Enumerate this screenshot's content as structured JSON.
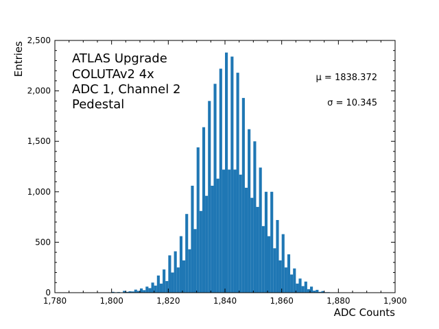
{
  "chart_data": {
    "type": "bar",
    "title": "",
    "xlabel": "ADC Counts",
    "ylabel": "Entries",
    "xlim": [
      1780,
      1900
    ],
    "ylim": [
      0,
      2500
    ],
    "bin_width": 1,
    "x_ticks": [
      1780,
      1800,
      1820,
      1840,
      1860,
      1880,
      1900
    ],
    "x_tick_labels": [
      "1,780",
      "1,800",
      "1,820",
      "1,840",
      "1,860",
      "1,880",
      "1,900"
    ],
    "y_ticks": [
      0,
      500,
      1000,
      1500,
      2000,
      2500
    ],
    "y_tick_labels": [
      "0",
      "500",
      "1,000",
      "1,500",
      "2,000",
      "2,500"
    ],
    "annotation_lines": [
      "ATLAS Upgrade",
      "COLUTAv2 4x",
      "ADC 1, Channel 2",
      "Pedestal"
    ],
    "stats": {
      "mu_label": "μ = 1838.372",
      "sigma_label": "σ = 10.345"
    },
    "bar_color": "#1f77b4",
    "grid": false,
    "series": [
      {
        "x": [
          1798,
          1799,
          1800,
          1801,
          1802,
          1803,
          1804,
          1805,
          1806,
          1807,
          1808,
          1809,
          1810,
          1811,
          1812,
          1813,
          1814,
          1815,
          1816,
          1817,
          1818,
          1819,
          1820,
          1821,
          1822,
          1823,
          1824,
          1825,
          1826,
          1827,
          1828,
          1829,
          1830,
          1831,
          1832,
          1833,
          1834,
          1835,
          1836,
          1837,
          1838,
          1839,
          1840,
          1841,
          1842,
          1843,
          1844,
          1845,
          1846,
          1847,
          1848,
          1849,
          1850,
          1851,
          1852,
          1853,
          1854,
          1855,
          1856,
          1857,
          1858,
          1859,
          1860,
          1861,
          1862,
          1863,
          1864,
          1865,
          1866,
          1867,
          1868,
          1869,
          1870,
          1871,
          1872,
          1873,
          1874,
          1875,
          1876,
          1877,
          1878,
          1879
        ],
        "values": [
          3,
          2,
          8,
          4,
          6,
          3,
          18,
          8,
          14,
          12,
          30,
          18,
          42,
          25,
          60,
          45,
          100,
          70,
          170,
          90,
          230,
          115,
          370,
          200,
          410,
          250,
          560,
          320,
          780,
          430,
          1060,
          630,
          1440,
          810,
          1640,
          960,
          1900,
          1060,
          2070,
          1130,
          2220,
          1220,
          2380,
          1220,
          2340,
          1220,
          2180,
          1170,
          1930,
          1040,
          1620,
          940,
          1500,
          850,
          1240,
          660,
          1000,
          560,
          1000,
          440,
          720,
          320,
          580,
          250,
          380,
          180,
          240,
          90,
          140,
          65,
          110,
          35,
          60,
          20,
          28,
          8,
          16,
          5,
          5,
          2,
          3,
          1
        ]
      }
    ]
  }
}
